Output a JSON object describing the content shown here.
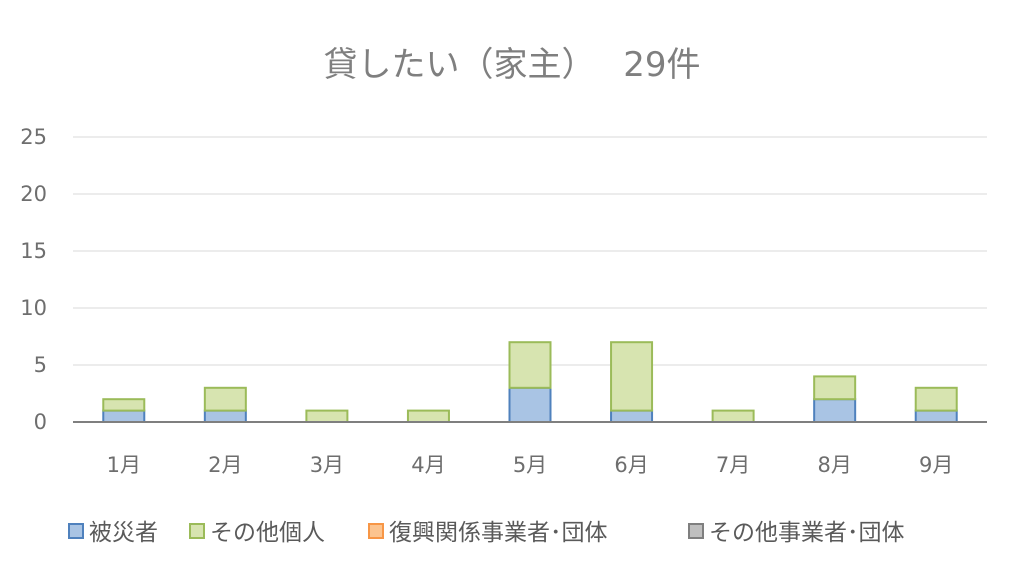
{
  "chart_data": {
    "type": "bar",
    "stacked": true,
    "title": "貸したい（家主）　 29件",
    "xlabel": "",
    "ylabel": "",
    "categories": [
      "1月",
      "2月",
      "3月",
      "4月",
      "5月",
      "6月",
      "7月",
      "8月",
      "9月"
    ],
    "y_ticks": [
      "0",
      "5",
      "10",
      "15",
      "20",
      "25"
    ],
    "ylim": [
      0,
      25
    ],
    "grid": true,
    "legend_position": "bottom",
    "series": [
      {
        "name": "被災者",
        "values": [
          1,
          1,
          0,
          0,
          3,
          1,
          0,
          2,
          1
        ],
        "fill": "#a9c4e4",
        "stroke": "#4f81bd"
      },
      {
        "name": "その他個人",
        "values": [
          1,
          2,
          1,
          1,
          4,
          6,
          1,
          2,
          2
        ],
        "fill": "#d7e4b0",
        "stroke": "#9bbb59"
      },
      {
        "name": "復興関係事業者･団体",
        "values": [
          0,
          0,
          0,
          0,
          0,
          0,
          0,
          0,
          0
        ],
        "fill": "#fcc48f",
        "stroke": "#f79646"
      },
      {
        "name": "その他事業者･団体",
        "values": [
          0,
          0,
          0,
          0,
          0,
          0,
          0,
          0,
          0
        ],
        "fill": "#bfbfbf",
        "stroke": "#7f7f7f"
      }
    ]
  }
}
